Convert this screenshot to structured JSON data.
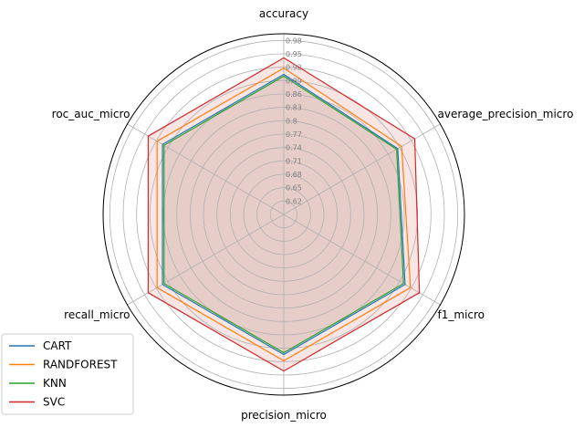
{
  "chart_data": {
    "type": "radar",
    "axes": [
      "accuracy",
      "average_precision_micro",
      "f1_micro",
      "precision_micro",
      "recall_micro",
      "roc_auc_micro"
    ],
    "radial_ticks": [
      "0.62",
      "0.65",
      "0.68",
      "0.71",
      "0.74",
      "0.77",
      "0.8",
      "0.83",
      "0.86",
      "0.89",
      "0.92",
      "0.95",
      "0.98"
    ],
    "radial_range": [
      0.59,
      0.995
    ],
    "grid": true,
    "legend_position": "lower-left",
    "series": [
      {
        "name": "CART",
        "color": "#1f77b4",
        "fill": false,
        "values": [
          0.904,
          0.885,
          0.904,
          0.904,
          0.904,
          0.904
        ]
      },
      {
        "name": "RANDFOREST",
        "color": "#ff7f0e",
        "fill": false,
        "values": [
          0.918,
          0.895,
          0.918,
          0.918,
          0.918,
          0.918
        ]
      },
      {
        "name": "KNN",
        "color": "#2ca02c",
        "fill": true,
        "fill_color": "#b5a48f",
        "fill_opacity": 0.65,
        "values": [
          0.9,
          0.882,
          0.9,
          0.9,
          0.9,
          0.9
        ]
      },
      {
        "name": "SVC",
        "color": "#d62728",
        "fill": true,
        "fill_color": "#f7d3d3",
        "fill_opacity": 0.6,
        "values": [
          0.941,
          0.929,
          0.941,
          0.941,
          0.941,
          0.941
        ]
      }
    ]
  }
}
